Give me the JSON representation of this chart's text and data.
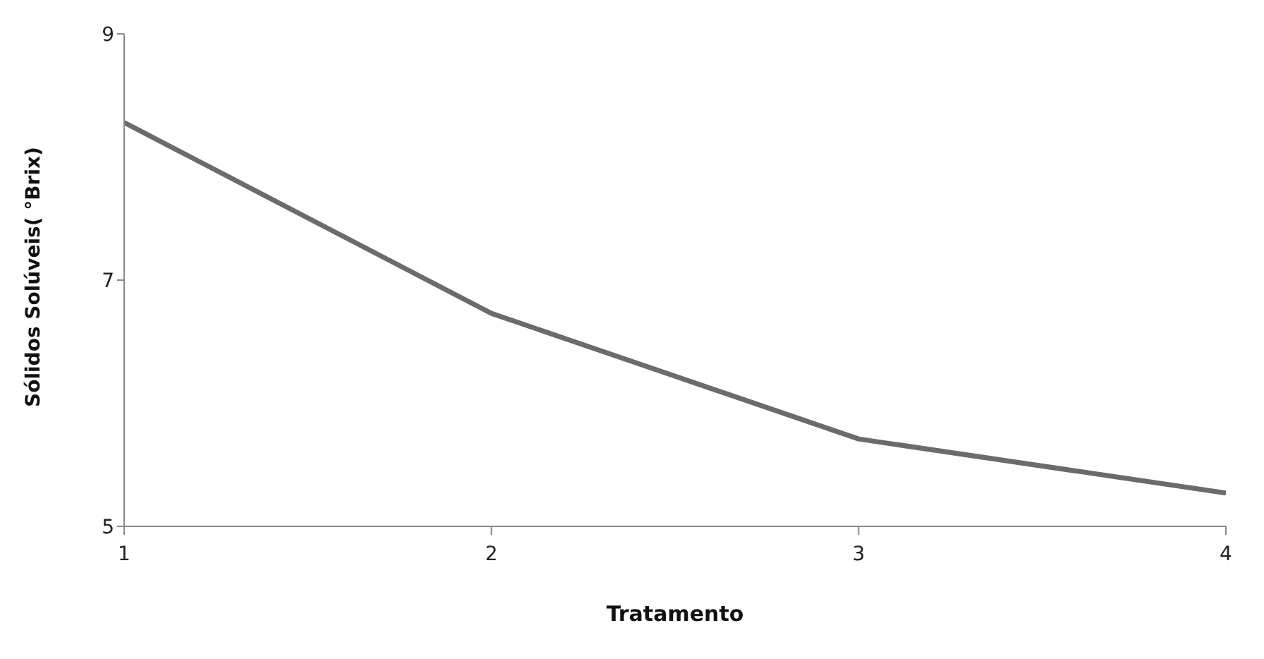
{
  "chart_data": {
    "type": "line",
    "xlabel": "Tratamento",
    "ylabel": "Sólidos Solúveis( °Brix)",
    "x": [
      1,
      2,
      3,
      4
    ],
    "series": [
      {
        "color": "#6b6b6b",
        "values": [
          8.28,
          6.73,
          5.71,
          5.27
        ]
      }
    ],
    "xlim": [
      1,
      4
    ],
    "xticks": [
      1,
      2,
      3,
      4
    ],
    "ylim": [
      5,
      9
    ],
    "yticks": [
      5,
      7,
      9
    ],
    "grid": false,
    "legend": false,
    "marker": "none",
    "line_style": "solid"
  }
}
